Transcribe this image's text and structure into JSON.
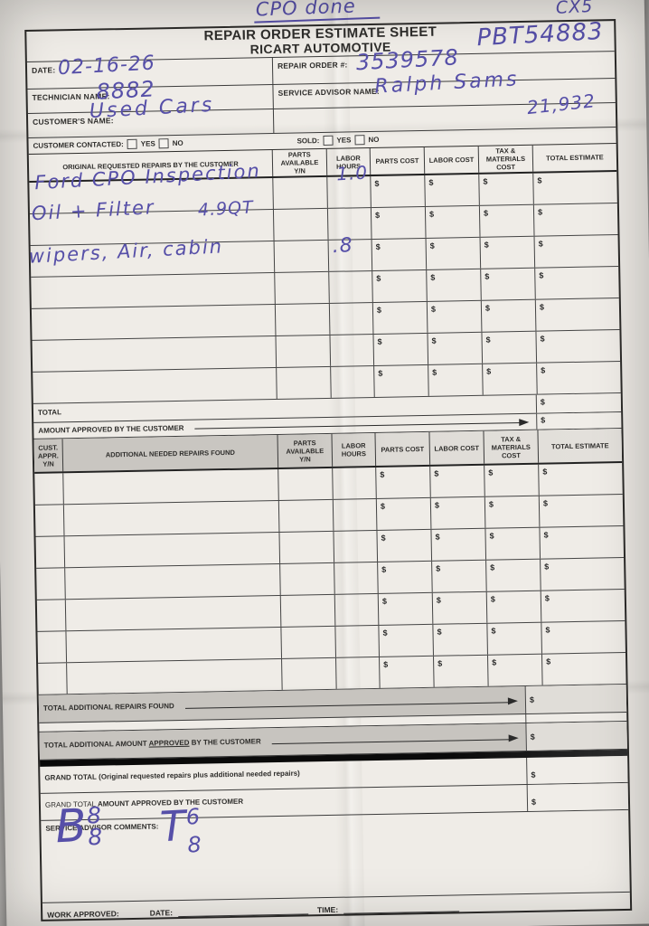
{
  "form": {
    "title1": "REPAIR ORDER ESTIMATE SHEET",
    "title2": "RICART AUTOMOTIVE",
    "currency": "$",
    "labels": {
      "date": "DATE:",
      "repair_order": "REPAIR ORDER #:",
      "technician": "TECHNICIAN NAME:",
      "advisor": "SERVICE ADVISOR NAME:",
      "customer": "CUSTOMER'S NAME:",
      "contacted": "CUSTOMER CONTACTED:",
      "sold": "SOLD:",
      "yes": "YES",
      "no": "NO"
    },
    "table1": {
      "headers": [
        "ORIGINAL REQUESTED REPAIRS BY THE CUSTOMER",
        "PARTS AVAILABLE Y/N",
        "LABOR HOURS",
        "PARTS COST",
        "LABOR COST",
        "TAX & MATERIALS COST",
        "TOTAL ESTIMATE"
      ],
      "row_count": 7,
      "total_label": "TOTAL",
      "amount_approved_label": "AMOUNT APPROVED BY THE CUSTOMER"
    },
    "table2": {
      "headers": [
        "CUST. APPR. Y/N",
        "ADDITIONAL NEEDED REPAIRS FOUND",
        "PARTS AVAILABLE Y/N",
        "LABOR HOURS",
        "PARTS COST",
        "LABOR COST",
        "TAX & MATERIALS COST",
        "TOTAL ESTIMATE"
      ],
      "row_count": 7
    },
    "summary": {
      "total_additional": "TOTAL ADDITIONAL REPAIRS FOUND",
      "total_additional_approved_pre": "TOTAL ADDITIONAL AMOUNT",
      "total_additional_approved_underlined": "APPROVED",
      "total_additional_approved_post": "BY THE CUSTOMER",
      "grand_total": "GRAND TOTAL",
      "grand_total_paren": "(Original requested repairs plus additional needed repairs)",
      "grand_total_approved_pre": "GRAND TOTAL",
      "grand_total_approved_post": "AMOUNT APPROVED BY THE CUSTOMER",
      "comments_label": "SERVICE ADVISOR COMMENTS:",
      "work_approved": "WORK APPROVED:",
      "date": "DATE:",
      "time": "TIME:"
    }
  },
  "annotations": {
    "top_note": "CPO done",
    "vehicle": "CX5",
    "tag": "PBT54883",
    "date": "02-16-26",
    "repair_order": "3539578",
    "technician": "8882",
    "advisor": "Ralph Sams",
    "customer": "Used Cars",
    "mileage": "21,932",
    "line1": "Ford CPO Inspection",
    "line1_hours": "1.0",
    "line2": "Oil + Filter",
    "line2_note": "4.9QT",
    "line3": "wipers, Air, cabin",
    "line3_hours": ".8",
    "comment1_letter": "B",
    "comment1_top": "8",
    "comment1_bottom": "8",
    "comment2_letter": "T",
    "comment2_top": "6",
    "comment2_bottom": "8"
  },
  "colors": {
    "ink": "#564fa8",
    "paper": "#eae7e2",
    "line": "#3b3b3b",
    "band": "#c7c4bf"
  }
}
